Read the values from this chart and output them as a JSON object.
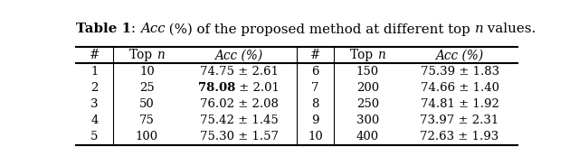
{
  "rows": [
    [
      "1",
      "10",
      "74.75 ± 2.61",
      "6",
      "150",
      "75.39 ± 1.83"
    ],
    [
      "2",
      "25",
      "78.08 ± 2.01",
      "7",
      "200",
      "74.66 ± 1.40"
    ],
    [
      "3",
      "50",
      "76.02 ± 2.08",
      "8",
      "250",
      "74.81 ± 1.92"
    ],
    [
      "4",
      "75",
      "75.42 ± 1.45",
      "9",
      "300",
      "73.97 ± 2.31"
    ],
    [
      "5",
      "100",
      "75.30 ± 1.57",
      "10",
      "400",
      "72.63 ± 1.93"
    ]
  ],
  "bold_row": 1,
  "bold_col": 2,
  "bold_value": "78.08",
  "bold_rest": " ± 2.01",
  "bg_color": "#ffffff",
  "line_color": "#000000",
  "figsize": [
    6.4,
    1.83
  ],
  "dpi": 100,
  "title_fontsize": 10.8,
  "header_fontsize": 9.8,
  "cell_fontsize": 9.5
}
